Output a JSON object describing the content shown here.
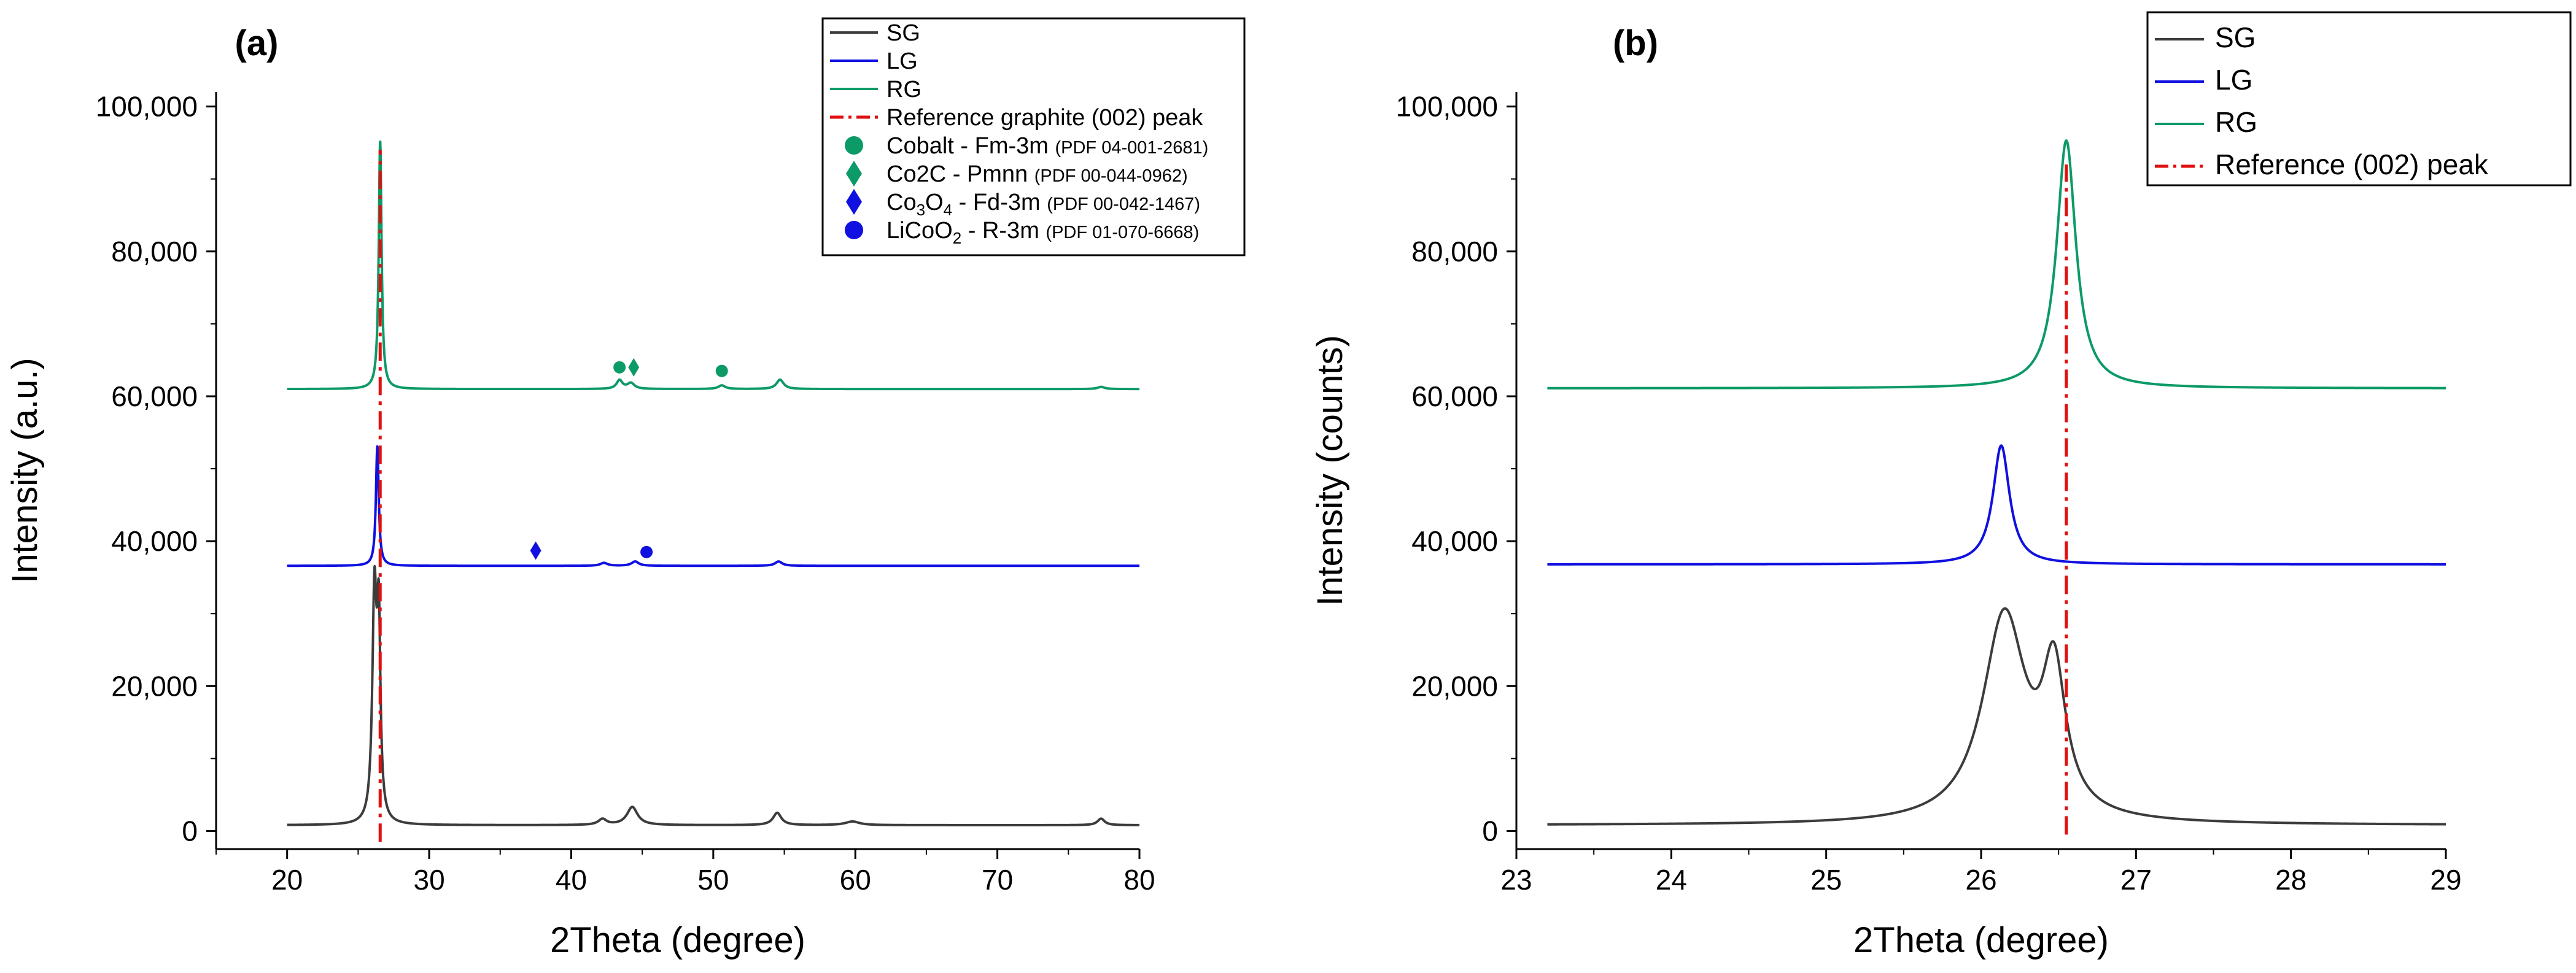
{
  "chart_data": [
    {
      "type": "line",
      "panel_label": "(a)",
      "xlabel": "2Theta (degree)",
      "ylabel": "Intensity (a.u.)",
      "xlim": [
        15,
        80
      ],
      "ylim": [
        -2500,
        102000
      ],
      "xticks": [
        20,
        30,
        40,
        50,
        60,
        70,
        80
      ],
      "xtick_labels": [
        "20",
        "30",
        "40",
        "50",
        "60",
        "70",
        "80"
      ],
      "yticks": [
        0,
        20000,
        40000,
        60000,
        80000,
        100000
      ],
      "ytick_labels": [
        "0",
        "20,000",
        "40,000",
        "60,000",
        "80,000",
        "100,000"
      ],
      "legend_position": "top-right",
      "series": [
        {
          "name": "SG",
          "color": "#3c3c3c",
          "baseline": 800,
          "x_range": [
            20,
            80
          ],
          "peaks": [
            {
              "x": 26.15,
              "y": 31000,
              "width": 0.18
            },
            {
              "x": 26.45,
              "y": 25500,
              "width": 0.14
            },
            {
              "x": 42.2,
              "y": 800,
              "width": 0.35
            },
            {
              "x": 44.3,
              "y": 2500,
              "width": 0.45
            },
            {
              "x": 54.5,
              "y": 1700,
              "width": 0.35
            },
            {
              "x": 59.8,
              "y": 500,
              "width": 0.6
            },
            {
              "x": 77.3,
              "y": 900,
              "width": 0.3
            }
          ]
        },
        {
          "name": "LG",
          "color": "#1010e0",
          "baseline": 36600,
          "x_range": [
            20,
            80
          ],
          "peaks": [
            {
              "x": 26.35,
              "y": 16500,
              "width": 0.12
            },
            {
              "x": 42.3,
              "y": 400,
              "width": 0.3
            },
            {
              "x": 44.5,
              "y": 600,
              "width": 0.3
            },
            {
              "x": 54.6,
              "y": 600,
              "width": 0.3
            }
          ]
        },
        {
          "name": "RG",
          "color": "#0c9a66",
          "baseline": 61000,
          "x_range": [
            20,
            80
          ],
          "peaks": [
            {
              "x": 26.55,
              "y": 34200,
              "width": 0.12
            },
            {
              "x": 43.4,
              "y": 1200,
              "width": 0.25
            },
            {
              "x": 44.2,
              "y": 800,
              "width": 0.3
            },
            {
              "x": 50.6,
              "y": 500,
              "width": 0.3
            },
            {
              "x": 54.7,
              "y": 1300,
              "width": 0.3
            },
            {
              "x": 77.3,
              "y": 300,
              "width": 0.3
            }
          ]
        }
      ],
      "reference_line": {
        "name": "Reference graphite (002) peak",
        "x": 26.55,
        "y_range": [
          -1500,
          94000
        ],
        "color": "#e01010"
      },
      "markers": [
        {
          "symbol": "circle",
          "color": "#0c9a66",
          "x": 43.4,
          "y": 64000
        },
        {
          "symbol": "diamond",
          "color": "#0c9a66",
          "x": 44.4,
          "y": 64000
        },
        {
          "symbol": "circle",
          "color": "#0c9a66",
          "x": 50.6,
          "y": 63500
        },
        {
          "symbol": "diamond",
          "color": "#1010e0",
          "x": 37.5,
          "y": 38700
        },
        {
          "symbol": "circle",
          "color": "#1010e0",
          "x": 45.3,
          "y": 38500
        }
      ],
      "legend": [
        {
          "kind": "line",
          "color": "#3c3c3c",
          "label": "SG"
        },
        {
          "kind": "line",
          "color": "#1010e0",
          "label": "LG"
        },
        {
          "kind": "line",
          "color": "#0c9a66",
          "label": "RG"
        },
        {
          "kind": "dashdot",
          "color": "#e01010",
          "label": "Reference graphite (002) peak"
        },
        {
          "kind": "circle",
          "color": "#0c9a66",
          "label": "Cobalt - Fm-3m",
          "pdf": "(PDF 04-001-2681)"
        },
        {
          "kind": "diamond",
          "color": "#0c9a66",
          "label": "Co2C - Pmnn",
          "pdf": "(PDF 00-044-0962)"
        },
        {
          "kind": "diamond",
          "color": "#1010e0",
          "label": "Co",
          "sub1": "3",
          "label_mid": "O",
          "sub2": "4",
          "label_end": " - Fd-3m",
          "pdf": "(PDF 00-042-1467)"
        },
        {
          "kind": "circle",
          "color": "#1010e0",
          "label": "LiCoO",
          "sub1": "2",
          "label_end": " - R-3m",
          "pdf": "(PDF 01-070-6668)"
        }
      ]
    },
    {
      "type": "line",
      "panel_label": "(b)",
      "xlabel": "2Theta (degree)",
      "ylabel": "Intensity (counts)",
      "xlim": [
        23,
        29
      ],
      "ylim": [
        -2500,
        102000
      ],
      "xticks": [
        23,
        24,
        25,
        26,
        27,
        28,
        29
      ],
      "xtick_labels": [
        "23",
        "24",
        "25",
        "26",
        "27",
        "28",
        "29"
      ],
      "yticks": [
        0,
        20000,
        40000,
        60000,
        80000,
        100000
      ],
      "ytick_labels": [
        "0",
        "20,000",
        "40,000",
        "60,000",
        "80,000",
        "100,000"
      ],
      "legend_position": "top-right",
      "series": [
        {
          "name": "SG",
          "color": "#3c3c3c",
          "baseline": 800,
          "x_range": [
            23.2,
            29
          ],
          "peaks": [
            {
              "x": 26.15,
              "y": 28500,
              "width": 0.17
            },
            {
              "x": 26.47,
              "y": 19000,
              "width": 0.09
            }
          ]
        },
        {
          "name": "LG",
          "color": "#1010e0",
          "baseline": 36800,
          "x_range": [
            23.2,
            29
          ],
          "peaks": [
            {
              "x": 26.13,
              "y": 16400,
              "width": 0.065
            }
          ]
        },
        {
          "name": "RG",
          "color": "#0c9a66",
          "baseline": 61100,
          "x_range": [
            23.2,
            29
          ],
          "peaks": [
            {
              "x": 26.55,
              "y": 34200,
              "width": 0.075
            }
          ]
        }
      ],
      "reference_line": {
        "name": "Reference (002) peak",
        "x": 26.55,
        "y_range": [
          -500,
          92000
        ],
        "color": "#e01010"
      },
      "legend": [
        {
          "kind": "line",
          "color": "#3c3c3c",
          "label": "SG"
        },
        {
          "kind": "line",
          "color": "#1010e0",
          "label": "LG"
        },
        {
          "kind": "line",
          "color": "#0c9a66",
          "label": "RG"
        },
        {
          "kind": "dashdot",
          "color": "#e01010",
          "label": "Reference (002) peak"
        }
      ]
    }
  ]
}
